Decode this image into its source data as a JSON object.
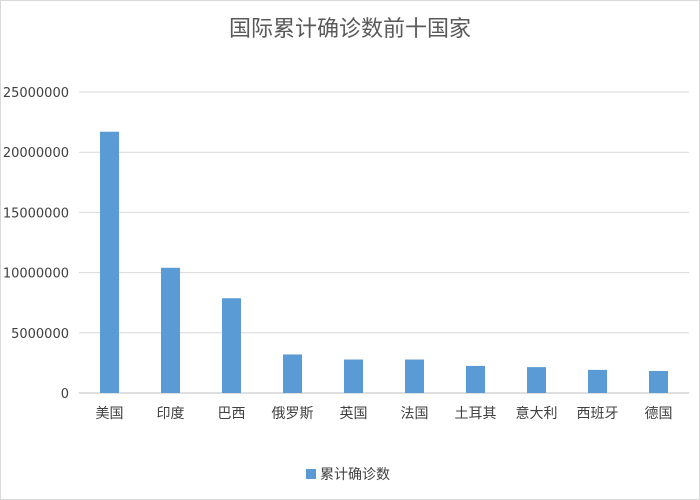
{
  "chart_data": {
    "type": "bar",
    "title": "国际累计确诊数前十国家",
    "categories": [
      "美国",
      "印度",
      "巴西",
      "俄罗斯",
      "英国",
      "法国",
      "土耳其",
      "意大利",
      "西班牙",
      "德国"
    ],
    "series": [
      {
        "name": "累计确诊数",
        "color": "#5b9bd5",
        "values": [
          21700000,
          10400000,
          7870000,
          3200000,
          2780000,
          2780000,
          2250000,
          2150000,
          1920000,
          1830000
        ]
      }
    ],
    "ylim": [
      0,
      25000000
    ],
    "yticks": [
      0,
      5000000,
      10000000,
      15000000,
      20000000,
      25000000
    ],
    "grid": true,
    "legend_position": "bottom"
  }
}
